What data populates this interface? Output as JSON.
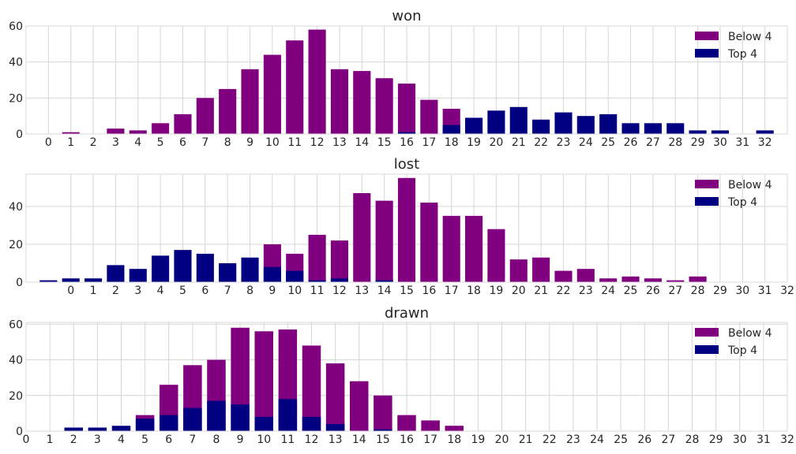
{
  "chart_data": [
    {
      "type": "bar",
      "title": "won",
      "xlabel": "",
      "ylabel": "",
      "xlim": [
        -1,
        33
      ],
      "ylim": [
        0,
        60
      ],
      "yticks": [
        0,
        20,
        40,
        60
      ],
      "xticks": [
        0,
        1,
        2,
        3,
        4,
        5,
        6,
        7,
        8,
        9,
        10,
        11,
        12,
        13,
        14,
        15,
        16,
        17,
        18,
        19,
        20,
        21,
        22,
        23,
        24,
        25,
        26,
        27,
        28,
        29,
        30,
        31,
        32
      ],
      "grid": true,
      "legend": "top-right",
      "x": [
        0,
        1,
        2,
        3,
        4,
        5,
        6,
        7,
        8,
        9,
        10,
        11,
        12,
        13,
        14,
        15,
        16,
        17,
        18,
        19,
        20,
        21,
        22,
        23,
        24,
        25,
        26,
        27,
        28,
        29,
        30,
        31,
        32
      ],
      "series": [
        {
          "name": "Below 4",
          "color": "#800080",
          "values": [
            0,
            1,
            0,
            3,
            2,
            6,
            11,
            20,
            25,
            36,
            44,
            52,
            58,
            36,
            35,
            31,
            28,
            19,
            14,
            0,
            0,
            0,
            0,
            0,
            0,
            0,
            0,
            0,
            0,
            0,
            0,
            0,
            0
          ]
        },
        {
          "name": "Top 4",
          "color": "#000080",
          "values": [
            0,
            0,
            0,
            0,
            0,
            0,
            0,
            0,
            0,
            0,
            0,
            0,
            0,
            0,
            0,
            0,
            1,
            0,
            5,
            9,
            13,
            15,
            8,
            12,
            10,
            11,
            6,
            6,
            6,
            2,
            2,
            0,
            2
          ]
        }
      ]
    },
    {
      "type": "bar",
      "title": "lost",
      "xlabel": "",
      "ylabel": "",
      "xlim": [
        -2,
        32
      ],
      "ylim": [
        0,
        57
      ],
      "yticks": [
        0,
        20,
        40
      ],
      "xticks": [
        0,
        1,
        2,
        3,
        4,
        5,
        6,
        7,
        8,
        9,
        10,
        11,
        12,
        13,
        14,
        15,
        16,
        17,
        18,
        19,
        20,
        21,
        22,
        23,
        24,
        25,
        26,
        27,
        28,
        29,
        30,
        31,
        32
      ],
      "grid": true,
      "legend": "top-right",
      "x": [
        -1,
        0,
        1,
        2,
        3,
        4,
        5,
        6,
        7,
        8,
        9,
        10,
        11,
        12,
        13,
        14,
        15,
        16,
        17,
        18,
        19,
        20,
        21,
        22,
        23,
        24,
        25,
        26,
        27,
        28,
        29,
        30,
        31
      ],
      "series": [
        {
          "name": "Below 4",
          "color": "#800080",
          "values": [
            0,
            0,
            0,
            0,
            0,
            0,
            0,
            0,
            0,
            0,
            20,
            15,
            25,
            22,
            47,
            43,
            55,
            42,
            35,
            35,
            28,
            12,
            13,
            6,
            7,
            2,
            3,
            2,
            1,
            3,
            0,
            0,
            0
          ]
        },
        {
          "name": "Top 4",
          "color": "#000080",
          "values": [
            1,
            2,
            2,
            9,
            7,
            14,
            17,
            15,
            10,
            13,
            8,
            6,
            1,
            2,
            0,
            1,
            0,
            0,
            0,
            0,
            0,
            0,
            0,
            0,
            0,
            0,
            0,
            0,
            0,
            0,
            0,
            0,
            0
          ]
        }
      ]
    },
    {
      "type": "bar",
      "title": "drawn",
      "xlabel": "",
      "ylabel": "",
      "xlim": [
        0,
        32
      ],
      "ylim": [
        0,
        61
      ],
      "yticks": [
        0,
        20,
        40,
        60
      ],
      "xticks": [
        0,
        1,
        2,
        3,
        4,
        5,
        6,
        7,
        8,
        9,
        10,
        11,
        12,
        13,
        14,
        15,
        16,
        17,
        18,
        19,
        20,
        21,
        22,
        23,
        24,
        25,
        26,
        27,
        28,
        29,
        30,
        31,
        32
      ],
      "grid": true,
      "legend": "top-right",
      "x": [
        2,
        3,
        4,
        5,
        6,
        7,
        8,
        9,
        10,
        11,
        12,
        13,
        14,
        15,
        16,
        17,
        18
      ],
      "series": [
        {
          "name": "Below 4",
          "color": "#800080",
          "values": [
            0,
            0,
            0,
            9,
            26,
            37,
            40,
            58,
            56,
            57,
            48,
            38,
            28,
            20,
            9,
            6,
            3
          ]
        },
        {
          "name": "Top 4",
          "color": "#000080",
          "values": [
            2,
            2,
            3,
            7,
            9,
            13,
            17,
            15,
            8,
            18,
            8,
            4,
            0,
            1,
            0,
            0,
            0
          ]
        }
      ]
    }
  ]
}
